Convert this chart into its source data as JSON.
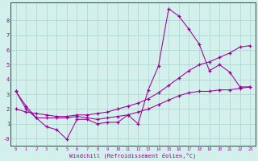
{
  "xlabel": "Windchill (Refroidissement éolien,°C)",
  "bg_color": "#d4f0ec",
  "grid_color": "#aed8d0",
  "line_color": "#990099",
  "series1_x": [
    0,
    1,
    2,
    3,
    4,
    5,
    6,
    7,
    8,
    9,
    10,
    11,
    12,
    13,
    14,
    15,
    16,
    17,
    18,
    19,
    20,
    21,
    22,
    23
  ],
  "series1_y": [
    3.2,
    2.2,
    1.4,
    0.8,
    0.6,
    -0.05,
    1.3,
    1.3,
    1.0,
    1.1,
    1.1,
    1.6,
    1.0,
    3.3,
    4.9,
    8.8,
    8.3,
    7.4,
    6.4,
    4.6,
    5.0,
    4.5,
    3.5,
    3.5
  ],
  "series2_x": [
    0,
    1,
    2,
    3,
    4,
    5,
    6,
    7,
    8,
    9,
    10,
    11,
    12,
    13,
    14,
    15,
    16,
    17,
    18,
    19,
    20,
    21,
    22,
    23
  ],
  "series2_y": [
    2.0,
    1.8,
    1.7,
    1.6,
    1.5,
    1.5,
    1.6,
    1.6,
    1.7,
    1.8,
    2.0,
    2.2,
    2.4,
    2.7,
    3.1,
    3.6,
    4.1,
    4.6,
    5.0,
    5.2,
    5.5,
    5.8,
    6.2,
    6.3
  ],
  "series3_x": [
    0,
    1,
    2,
    3,
    4,
    5,
    6,
    7,
    8,
    9,
    10,
    11,
    12,
    13,
    14,
    15,
    16,
    17,
    18,
    19,
    20,
    21,
    22,
    23
  ],
  "series3_y": [
    3.2,
    2.0,
    1.4,
    1.4,
    1.4,
    1.4,
    1.5,
    1.4,
    1.3,
    1.4,
    1.5,
    1.6,
    1.8,
    2.0,
    2.3,
    2.6,
    2.9,
    3.1,
    3.2,
    3.2,
    3.3,
    3.3,
    3.4,
    3.5
  ],
  "xlim": [
    -0.5,
    23.5
  ],
  "ylim": [
    -0.5,
    9.2
  ],
  "yticks": [
    0,
    1,
    2,
    3,
    4,
    5,
    6,
    7,
    8
  ],
  "ytick_labels": [
    "-0",
    "1",
    "2",
    "3",
    "4",
    "5",
    "6",
    "7",
    "8"
  ],
  "xticks": [
    0,
    1,
    2,
    3,
    4,
    5,
    6,
    7,
    8,
    9,
    10,
    11,
    12,
    13,
    14,
    15,
    16,
    17,
    18,
    19,
    20,
    21,
    22,
    23
  ]
}
